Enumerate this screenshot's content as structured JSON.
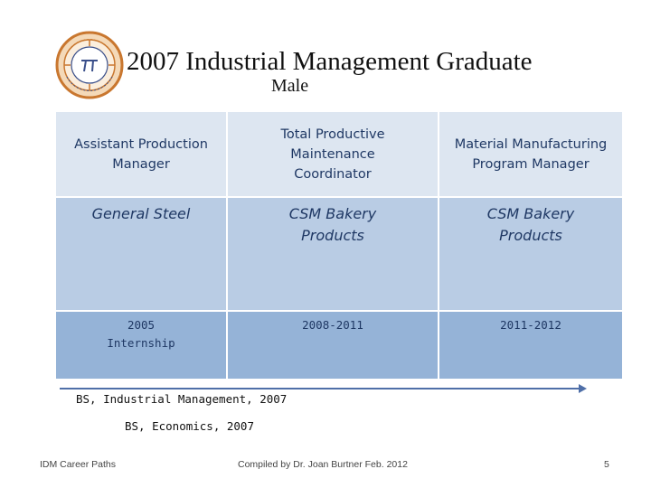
{
  "slide": {
    "title": "2007 Industrial Management Graduate",
    "subtitle": "Male"
  },
  "career": {
    "columns": [
      {
        "role": "Assistant Production Manager",
        "company": "General Steel",
        "years": "2005\nInternship"
      },
      {
        "role": "Total Productive Maintenance Coordinator",
        "company": "CSM Bakery Products",
        "years": "2008-2011"
      },
      {
        "role": "Material Manufacturing Program Manager",
        "company": "CSM Bakery Products",
        "years": "2011-2012"
      }
    ]
  },
  "education": {
    "degree_1": "BS, Industrial Management, 2007",
    "degree_2": "BS, Economics, 2007"
  },
  "footer": {
    "left": "IDM Career Paths",
    "center": "Compiled by Dr. Joan Burtner Feb. 2012",
    "page_number": "5"
  },
  "colors": {
    "header_row": "#dde6f1",
    "company_row": "#b9cce4",
    "year_row": "#95b3d7",
    "text": "#1f3864",
    "arrow": "#4f6fa8",
    "logo_ring": "#c9772f"
  },
  "icons": {
    "logo": "university-seal-icon",
    "timeline": "arrow-right-icon"
  }
}
